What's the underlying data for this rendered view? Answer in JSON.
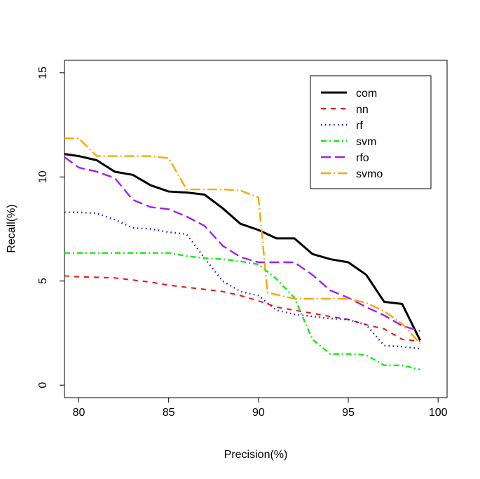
{
  "chart_data": {
    "type": "line",
    "title": "",
    "xlabel": "Precision(%)",
    "ylabel": "Recall(%)",
    "xlim": [
      79.2,
      100.5
    ],
    "ylim": [
      -0.6,
      15.6
    ],
    "xticks": [
      80,
      85,
      90,
      95,
      100
    ],
    "yticks": [
      0,
      5,
      10,
      15
    ],
    "grid": false,
    "legend_position": "top-right",
    "series": [
      {
        "name": "com",
        "color": "#000000",
        "dash": "solid",
        "width": 3,
        "points": [
          [
            79.2,
            11.1
          ],
          [
            80,
            11.0
          ],
          [
            81,
            10.8
          ],
          [
            82,
            10.25
          ],
          [
            83,
            10.1
          ],
          [
            84,
            9.6
          ],
          [
            85,
            9.3
          ],
          [
            86,
            9.25
          ],
          [
            87,
            9.15
          ],
          [
            88,
            8.5
          ],
          [
            89,
            7.75
          ],
          [
            90,
            7.45
          ],
          [
            91,
            7.05
          ],
          [
            92,
            7.05
          ],
          [
            93,
            6.3
          ],
          [
            94,
            6.05
          ],
          [
            95,
            5.9
          ],
          [
            96,
            5.3
          ],
          [
            97,
            4.0
          ],
          [
            98,
            3.9
          ],
          [
            99,
            2.15
          ]
        ]
      },
      {
        "name": "nn",
        "color": "#ee1111",
        "dash": "7,7",
        "width": 2,
        "points": [
          [
            79.2,
            5.25
          ],
          [
            80,
            5.2
          ],
          [
            81,
            5.18
          ],
          [
            82,
            5.15
          ],
          [
            83,
            5.05
          ],
          [
            84,
            4.95
          ],
          [
            85,
            4.8
          ],
          [
            86,
            4.7
          ],
          [
            87,
            4.6
          ],
          [
            88,
            4.5
          ],
          [
            89,
            4.3
          ],
          [
            90,
            4.05
          ],
          [
            91,
            3.75
          ],
          [
            92,
            3.6
          ],
          [
            93,
            3.45
          ],
          [
            94,
            3.3
          ],
          [
            95,
            3.15
          ],
          [
            96,
            2.9
          ],
          [
            97,
            2.7
          ],
          [
            98,
            2.2
          ],
          [
            99,
            2.1
          ]
        ]
      },
      {
        "name": "rf",
        "color": "#1111ee",
        "dash": "1.5,4.5",
        "width": 2.4,
        "points": [
          [
            79.2,
            8.3
          ],
          [
            80,
            8.3
          ],
          [
            81,
            8.25
          ],
          [
            82,
            7.95
          ],
          [
            83,
            7.55
          ],
          [
            84,
            7.5
          ],
          [
            85,
            7.35
          ],
          [
            86,
            7.25
          ],
          [
            87,
            6.1
          ],
          [
            88,
            5.0
          ],
          [
            89,
            4.5
          ],
          [
            90,
            4.3
          ],
          [
            91,
            3.6
          ],
          [
            92,
            3.4
          ],
          [
            93,
            3.3
          ],
          [
            94,
            3.2
          ],
          [
            95,
            3.15
          ],
          [
            96,
            2.9
          ],
          [
            97,
            1.9
          ],
          [
            98,
            1.85
          ],
          [
            99,
            1.75
          ]
        ]
      },
      {
        "name": "svm",
        "color": "#11ee11",
        "dash": "8,4,2,4",
        "width": 2.4,
        "points": [
          [
            79.2,
            6.35
          ],
          [
            80,
            6.35
          ],
          [
            81,
            6.35
          ],
          [
            82,
            6.35
          ],
          [
            83,
            6.35
          ],
          [
            84,
            6.35
          ],
          [
            85,
            6.35
          ],
          [
            86,
            6.2
          ],
          [
            87,
            6.1
          ],
          [
            88,
            6.05
          ],
          [
            89,
            5.95
          ],
          [
            90,
            5.8
          ],
          [
            91,
            5.1
          ],
          [
            92,
            4.2
          ],
          [
            93,
            2.2
          ],
          [
            94,
            1.5
          ],
          [
            95,
            1.5
          ],
          [
            96,
            1.45
          ],
          [
            97,
            0.95
          ],
          [
            98,
            0.95
          ],
          [
            99,
            0.75
          ]
        ]
      },
      {
        "name": "rfo",
        "color": "#a020f0",
        "dash": "14,6",
        "width": 2.4,
        "points": [
          [
            79.2,
            10.95
          ],
          [
            80,
            10.45
          ],
          [
            81,
            10.25
          ],
          [
            82,
            9.95
          ],
          [
            83,
            8.9
          ],
          [
            84,
            8.55
          ],
          [
            85,
            8.45
          ],
          [
            86,
            8.1
          ],
          [
            87,
            7.65
          ],
          [
            88,
            6.7
          ],
          [
            89,
            6.15
          ],
          [
            90,
            5.9
          ],
          [
            91,
            5.9
          ],
          [
            92,
            5.9
          ],
          [
            93,
            5.3
          ],
          [
            94,
            4.55
          ],
          [
            95,
            4.2
          ],
          [
            96,
            3.75
          ],
          [
            97,
            3.35
          ],
          [
            98,
            2.85
          ],
          [
            99,
            2.6
          ]
        ]
      },
      {
        "name": "svmo",
        "color": "#ffa500",
        "dash": "14,4,2,4",
        "width": 2.4,
        "points": [
          [
            79.2,
            11.85
          ],
          [
            80,
            11.85
          ],
          [
            81,
            11.0
          ],
          [
            82,
            11.0
          ],
          [
            83,
            11.0
          ],
          [
            84,
            11.0
          ],
          [
            85,
            10.9
          ],
          [
            86,
            9.4
          ],
          [
            87,
            9.4
          ],
          [
            88,
            9.4
          ],
          [
            89,
            9.35
          ],
          [
            90,
            9.0
          ],
          [
            90.5,
            4.45
          ],
          [
            91,
            4.35
          ],
          [
            92,
            4.15
          ],
          [
            93,
            4.15
          ],
          [
            94,
            4.15
          ],
          [
            95,
            4.15
          ],
          [
            96,
            3.95
          ],
          [
            97,
            3.55
          ],
          [
            98,
            2.95
          ],
          [
            99,
            2.0
          ]
        ]
      }
    ]
  }
}
